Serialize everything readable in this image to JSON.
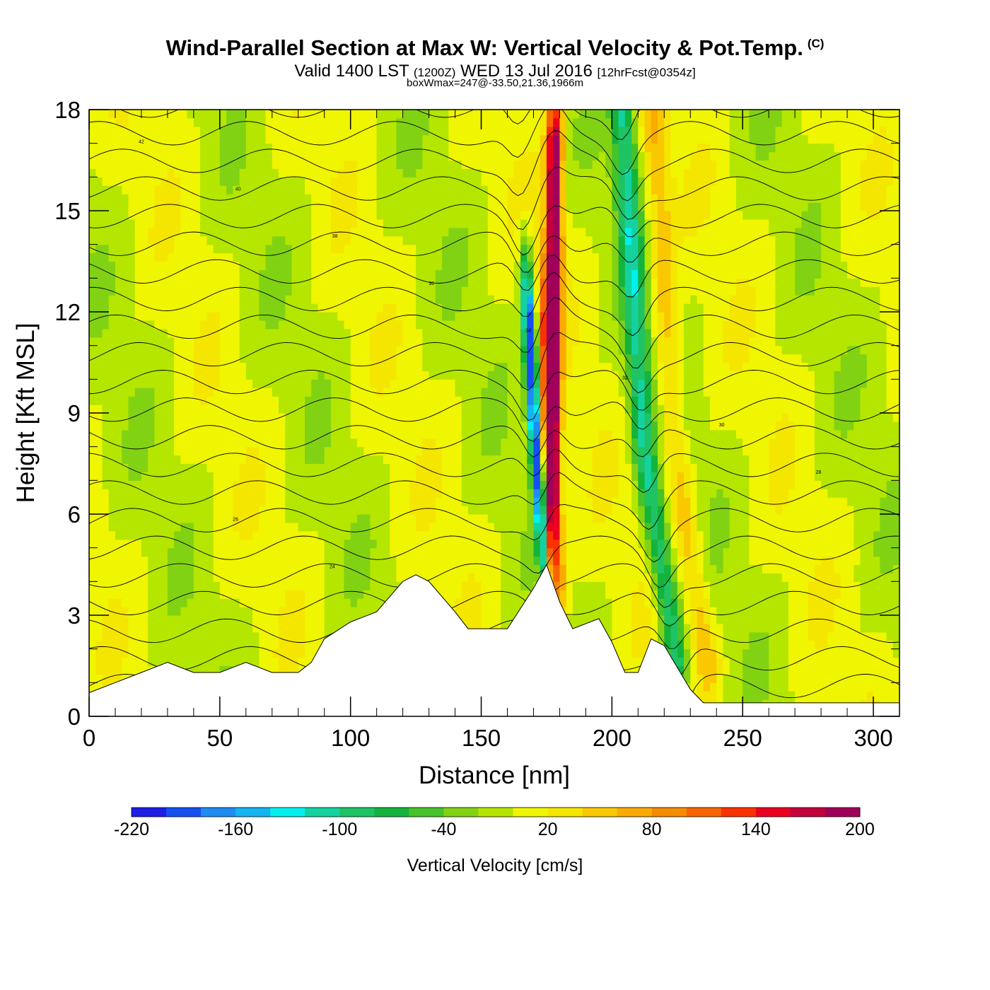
{
  "header": {
    "title": "Wind-Parallel Section at Max W: Vertical Velocity & Pot.Temp.",
    "copyright": "(C)",
    "valid_line_a": "Valid 1400 LST",
    "valid_line_b": "(1200Z)",
    "valid_line_c": "WED 13 Jul 2016",
    "valid_line_d": "[12hrFcst@0354z]",
    "box_line": "boxWmax=247@-33.50,21.36,1966m"
  },
  "chart_data": {
    "type": "heatmap",
    "xlabel": "Distance [nm]",
    "ylabel": "Height [Kft MSL]",
    "xlim": [
      0,
      310
    ],
    "ylim": [
      0,
      18
    ],
    "x_ticks": [
      0,
      50,
      100,
      150,
      200,
      250,
      300
    ],
    "y_ticks": [
      0,
      3,
      6,
      9,
      12,
      15,
      18
    ],
    "colorbar": {
      "label": "Vertical Velocity [cm/s]",
      "tick_labels": [
        "-220",
        "-160",
        "-100",
        "-40",
        "20",
        "80",
        "140",
        "200"
      ],
      "bounds": [
        -220,
        200
      ],
      "step": 20,
      "colors": [
        "#1e1ee6",
        "#1450f0",
        "#1e8cf0",
        "#14b4f0",
        "#00f0f0",
        "#14d2a0",
        "#1ec364",
        "#14b43c",
        "#46c328",
        "#82d214",
        "#b4e600",
        "#f0f500",
        "#f5e600",
        "#fac800",
        "#faaa00",
        "#f58c00",
        "#fa6400",
        "#fa3200",
        "#eb001e",
        "#c3003c",
        "#a0005a"
      ]
    },
    "series": [
      {
        "name": "",
        "kind": "updraft",
        "axis_points": [
          [
            176,
            3.6
          ],
          [
            177,
            9
          ],
          [
            178,
            17
          ]
        ],
        "peak_cm_s": 200
      },
      {
        "name": "",
        "kind": "downdraft",
        "axis_points": [
          [
            175,
            3.8
          ],
          [
            170,
            9
          ],
          [
            168,
            12
          ]
        ],
        "peak_cm_s": -200
      },
      {
        "name": "",
        "kind": "downdraft",
        "axis_points": [
          [
            225,
            1.5
          ],
          [
            212,
            8
          ],
          [
            204,
            18
          ]
        ],
        "peak_cm_s": -100
      }
    ],
    "terrain_kft": [
      {
        "x": 0,
        "h": 0.7
      },
      {
        "x": 10,
        "h": 1.0
      },
      {
        "x": 20,
        "h": 1.3
      },
      {
        "x": 30,
        "h": 1.6
      },
      {
        "x": 40,
        "h": 1.3
      },
      {
        "x": 50,
        "h": 1.3
      },
      {
        "x": 60,
        "h": 1.6
      },
      {
        "x": 70,
        "h": 1.3
      },
      {
        "x": 80,
        "h": 1.3
      },
      {
        "x": 85,
        "h": 1.6
      },
      {
        "x": 90,
        "h": 2.3
      },
      {
        "x": 100,
        "h": 2.8
      },
      {
        "x": 110,
        "h": 3.1
      },
      {
        "x": 120,
        "h": 4.0
      },
      {
        "x": 125,
        "h": 4.2
      },
      {
        "x": 130,
        "h": 4.0
      },
      {
        "x": 140,
        "h": 3.1
      },
      {
        "x": 145,
        "h": 2.6
      },
      {
        "x": 160,
        "h": 2.6
      },
      {
        "x": 170,
        "h": 3.8
      },
      {
        "x": 175,
        "h": 4.5
      },
      {
        "x": 180,
        "h": 3.4
      },
      {
        "x": 185,
        "h": 2.6
      },
      {
        "x": 195,
        "h": 2.9
      },
      {
        "x": 200,
        "h": 2.2
      },
      {
        "x": 205,
        "h": 1.3
      },
      {
        "x": 210,
        "h": 1.3
      },
      {
        "x": 215,
        "h": 2.3
      },
      {
        "x": 220,
        "h": 2.1
      },
      {
        "x": 230,
        "h": 0.8
      },
      {
        "x": 235,
        "h": 0.4
      },
      {
        "x": 310,
        "h": 0.4
      }
    ],
    "isentrope_labels": [
      "42",
      "40",
      "38",
      "36",
      "34",
      "32",
      "30",
      "28",
      "26",
      "24"
    ]
  }
}
